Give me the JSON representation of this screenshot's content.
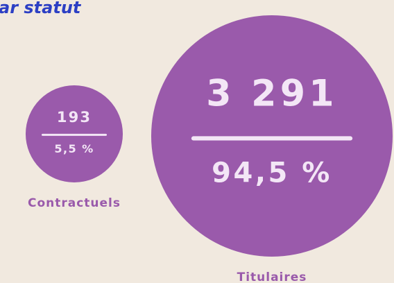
{
  "chart_data": {
    "type": "bubble",
    "title": "ar statut",
    "categories": [
      "Contractuels",
      "Titulaires"
    ],
    "values": [
      193,
      3291
    ],
    "value_labels": [
      "193",
      "3 291"
    ],
    "shares": [
      5.5,
      94.5
    ],
    "share_labels": [
      "5,5 %",
      "94,5 %"
    ],
    "color": "#9a5aab"
  }
}
